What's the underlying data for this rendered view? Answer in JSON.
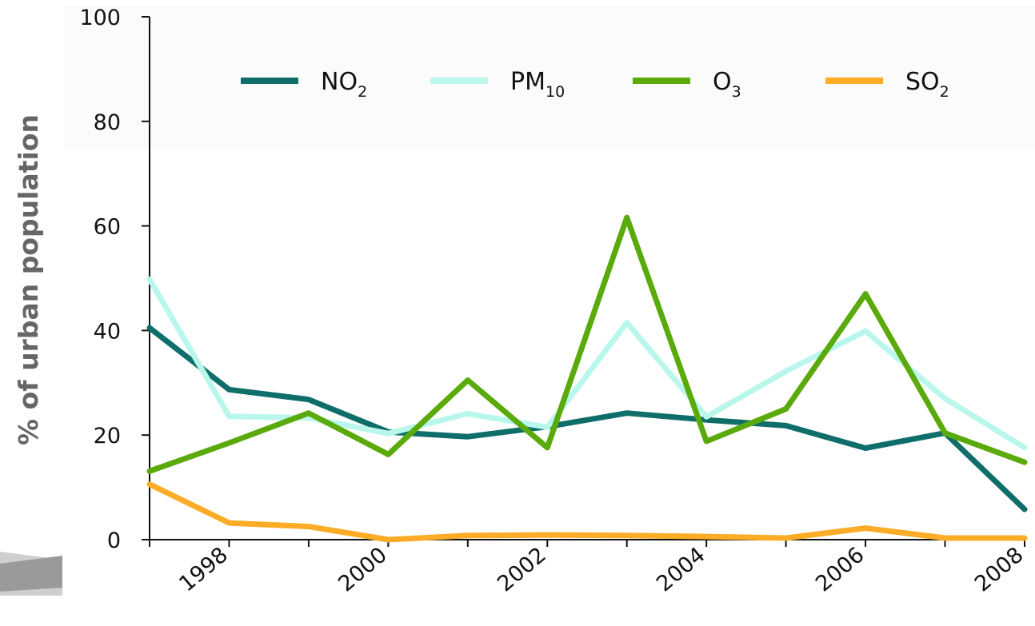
{
  "chart_data": {
    "type": "line",
    "ylabel": "% of urban population",
    "xlabel": "",
    "x": [
      1997,
      1998,
      1999,
      2000,
      2001,
      2002,
      2003,
      2004,
      2005,
      2006,
      2007,
      2008
    ],
    "xlim": [
      1997,
      2008
    ],
    "ylim": [
      0,
      100
    ],
    "x_ticks": [
      "1998",
      "2000",
      "2002",
      "2004",
      "2006",
      "2008"
    ],
    "y_ticks": [
      "0",
      "20",
      "40",
      "60",
      "80",
      "100"
    ],
    "grid": false,
    "legend_position": "top",
    "series": [
      {
        "name": "NO",
        "sub": "2",
        "color": "#0f6e6a",
        "values": [
          40.5,
          28.7,
          26.8,
          20.6,
          19.7,
          21.6,
          24.2,
          22.9,
          21.8,
          17.5,
          20.4,
          5.8
        ]
      },
      {
        "name": "PM",
        "sub": "10",
        "color": "#b9f7ec",
        "values": [
          49.8,
          23.6,
          23.3,
          20.3,
          24.1,
          21.5,
          41.5,
          23.5,
          32.2,
          39.9,
          27.0,
          17.6
        ]
      },
      {
        "name": "O",
        "sub": "3",
        "color": "#5aaa0c",
        "values": [
          13.1,
          18.5,
          24.2,
          16.3,
          30.5,
          17.6,
          61.6,
          18.8,
          25.0,
          47.0,
          20.4,
          14.8
        ]
      },
      {
        "name": "SO",
        "sub": "2",
        "color": "#fcac26",
        "values": [
          10.6,
          3.2,
          2.5,
          0.0,
          0.8,
          0.9,
          0.8,
          0.6,
          0.3,
          2.2,
          0.3,
          0.3
        ]
      }
    ]
  }
}
